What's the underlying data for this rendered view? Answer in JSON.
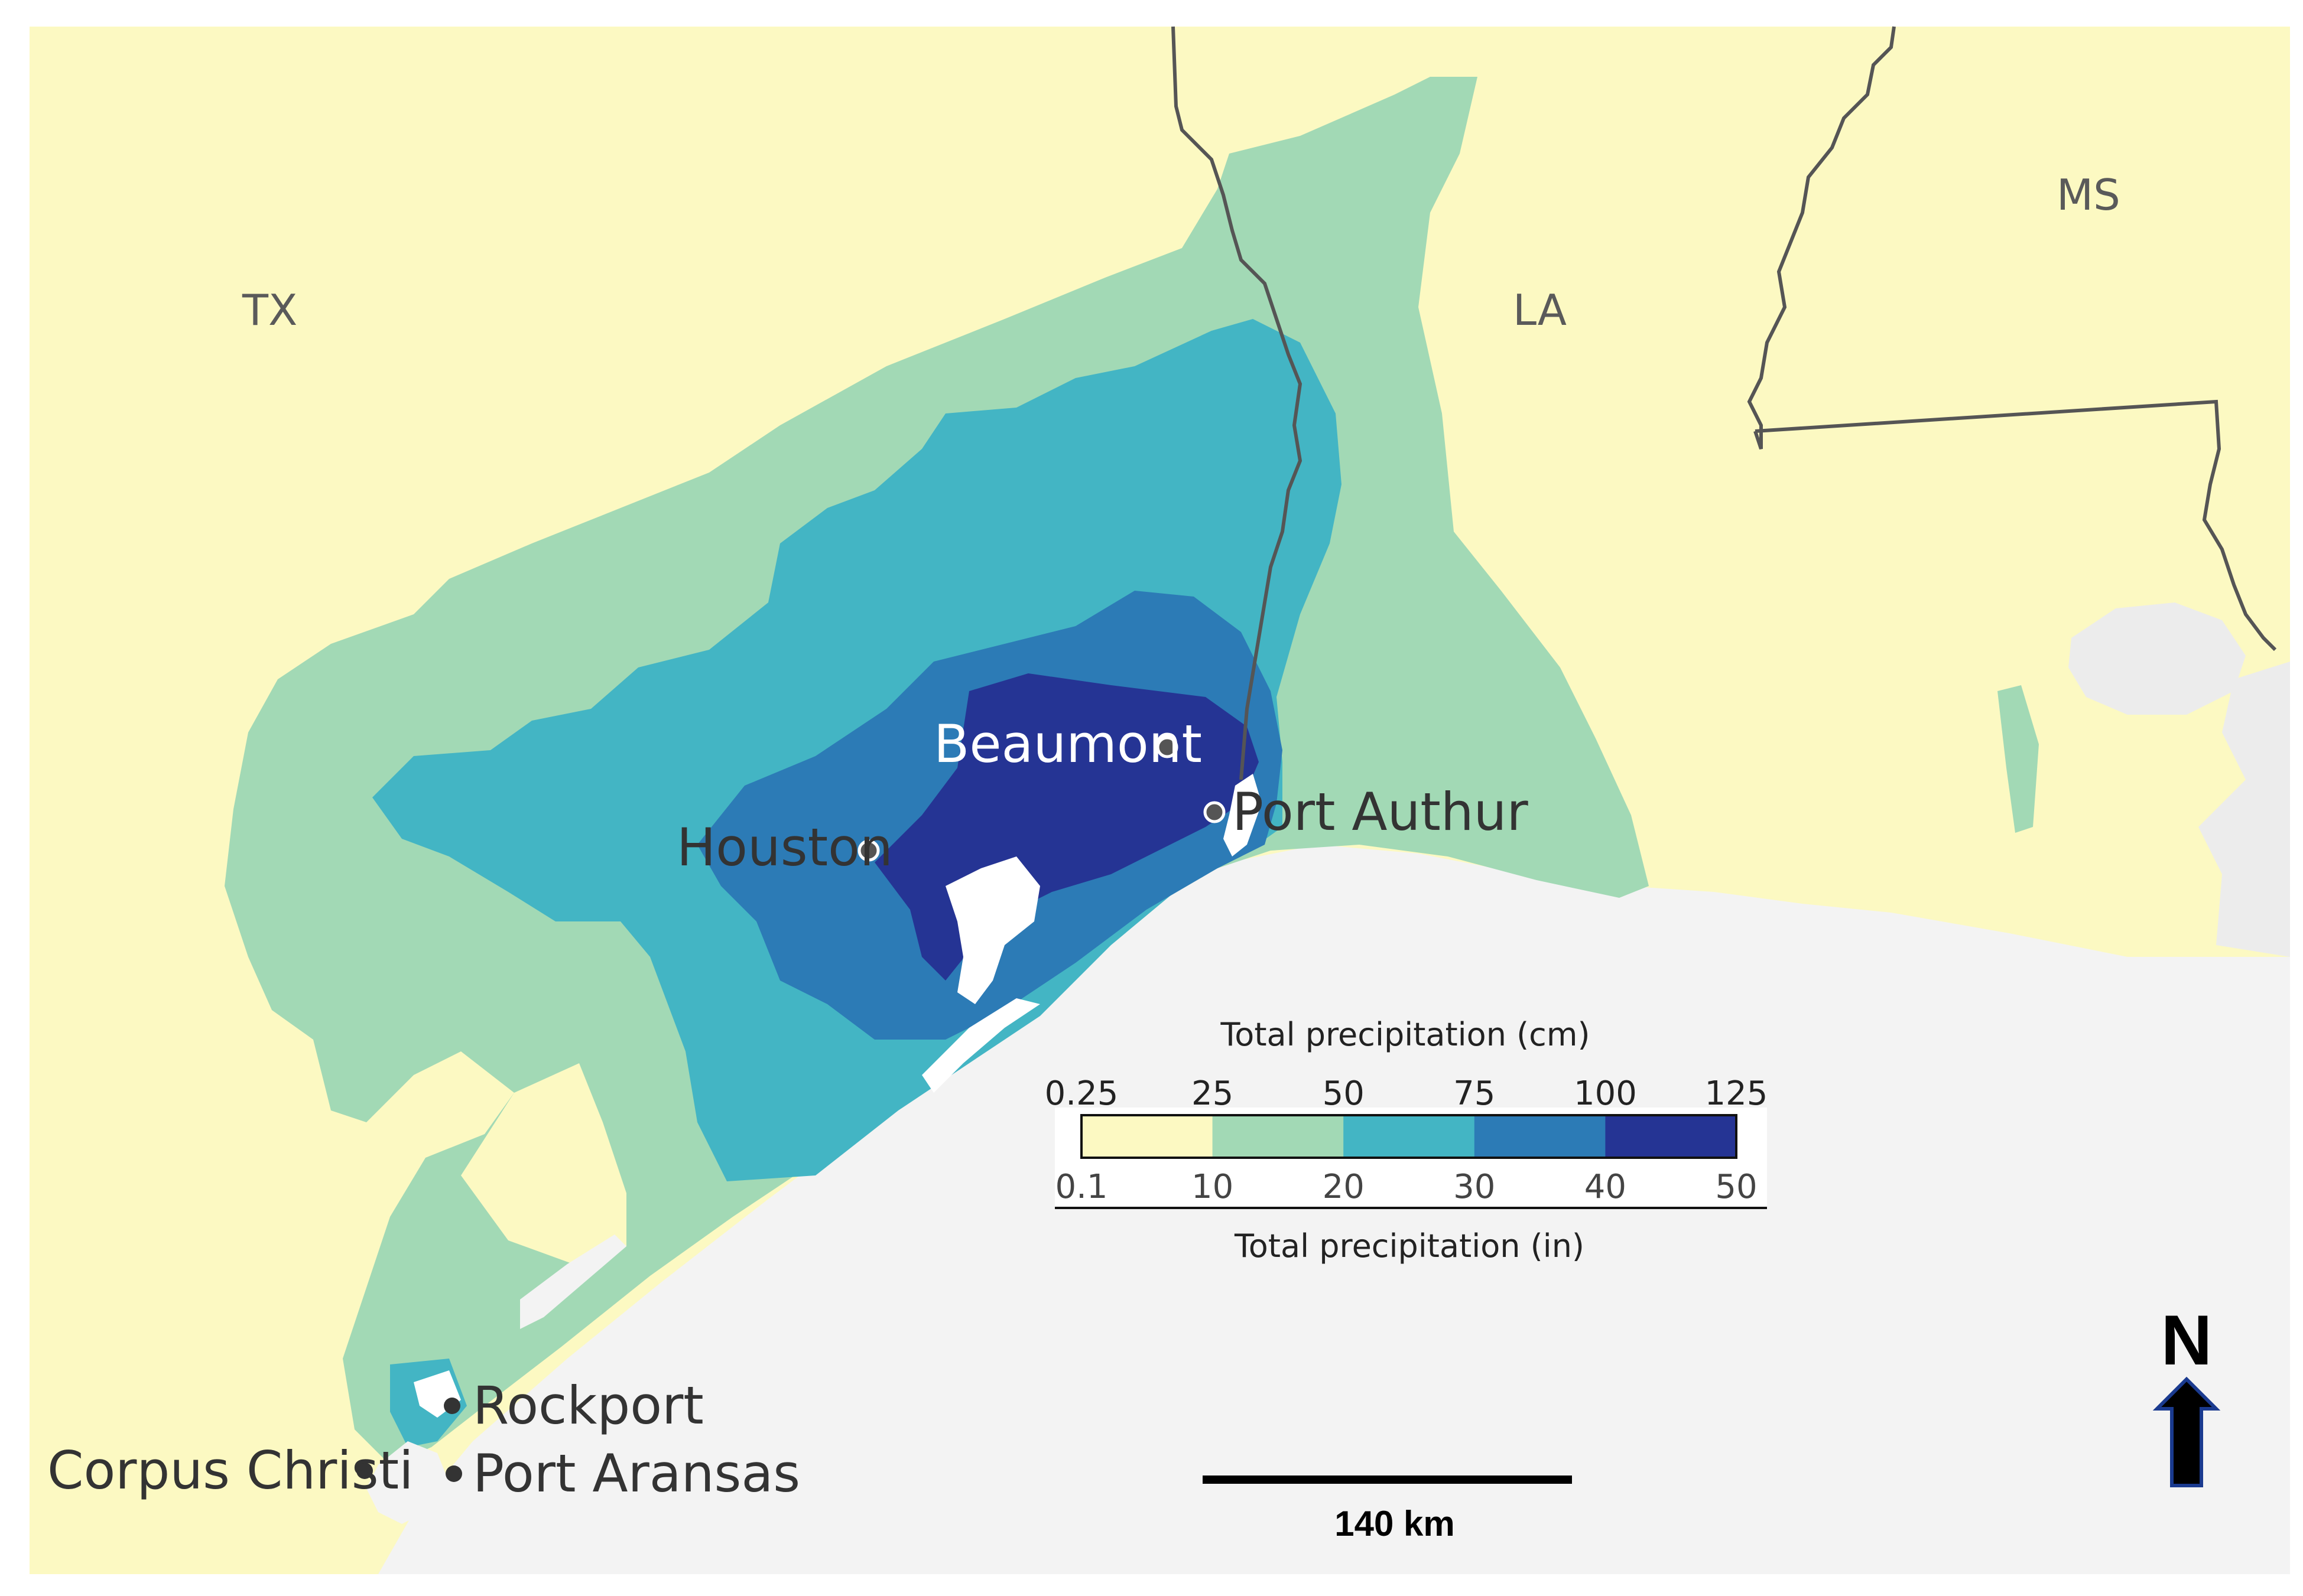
{
  "map": {
    "states": [
      "TX",
      "LA",
      "MS"
    ],
    "cities": [
      {
        "id": "beaumont",
        "name": "Beaumont"
      },
      {
        "id": "port-authur",
        "name": "Port Authur"
      },
      {
        "id": "houston",
        "name": "Houston"
      },
      {
        "id": "rockport",
        "name": "Rockport"
      },
      {
        "id": "corpus-christi",
        "name": "Corpus Christi"
      },
      {
        "id": "port-aransas",
        "name": "Port Aransas"
      }
    ]
  },
  "legend": {
    "title_top": "Total precipitation (cm)",
    "title_bottom": "Total precipitation (in)",
    "cm_ticks": [
      "0.25",
      "25",
      "50",
      "75",
      "100",
      "125"
    ],
    "in_ticks": [
      "0.1",
      "10",
      "20",
      "30",
      "40",
      "50"
    ],
    "bins": [
      {
        "from_in": 0.1,
        "to_in": 10,
        "color": "#fcf9c2"
      },
      {
        "from_in": 10,
        "to_in": 20,
        "color": "#a2d9b5"
      },
      {
        "from_in": 20,
        "to_in": 30,
        "color": "#43b5c4"
      },
      {
        "from_in": 30,
        "to_in": 40,
        "color": "#2c7bb6"
      },
      {
        "from_in": 40,
        "to_in": 50,
        "color": "#253494"
      }
    ]
  },
  "colors": {
    "land": "#fcf9c2",
    "water": "#f3f3f3",
    "border": "#555555"
  },
  "scale_bar": {
    "label": "140 km"
  },
  "north_arrow": {
    "label": "N"
  }
}
